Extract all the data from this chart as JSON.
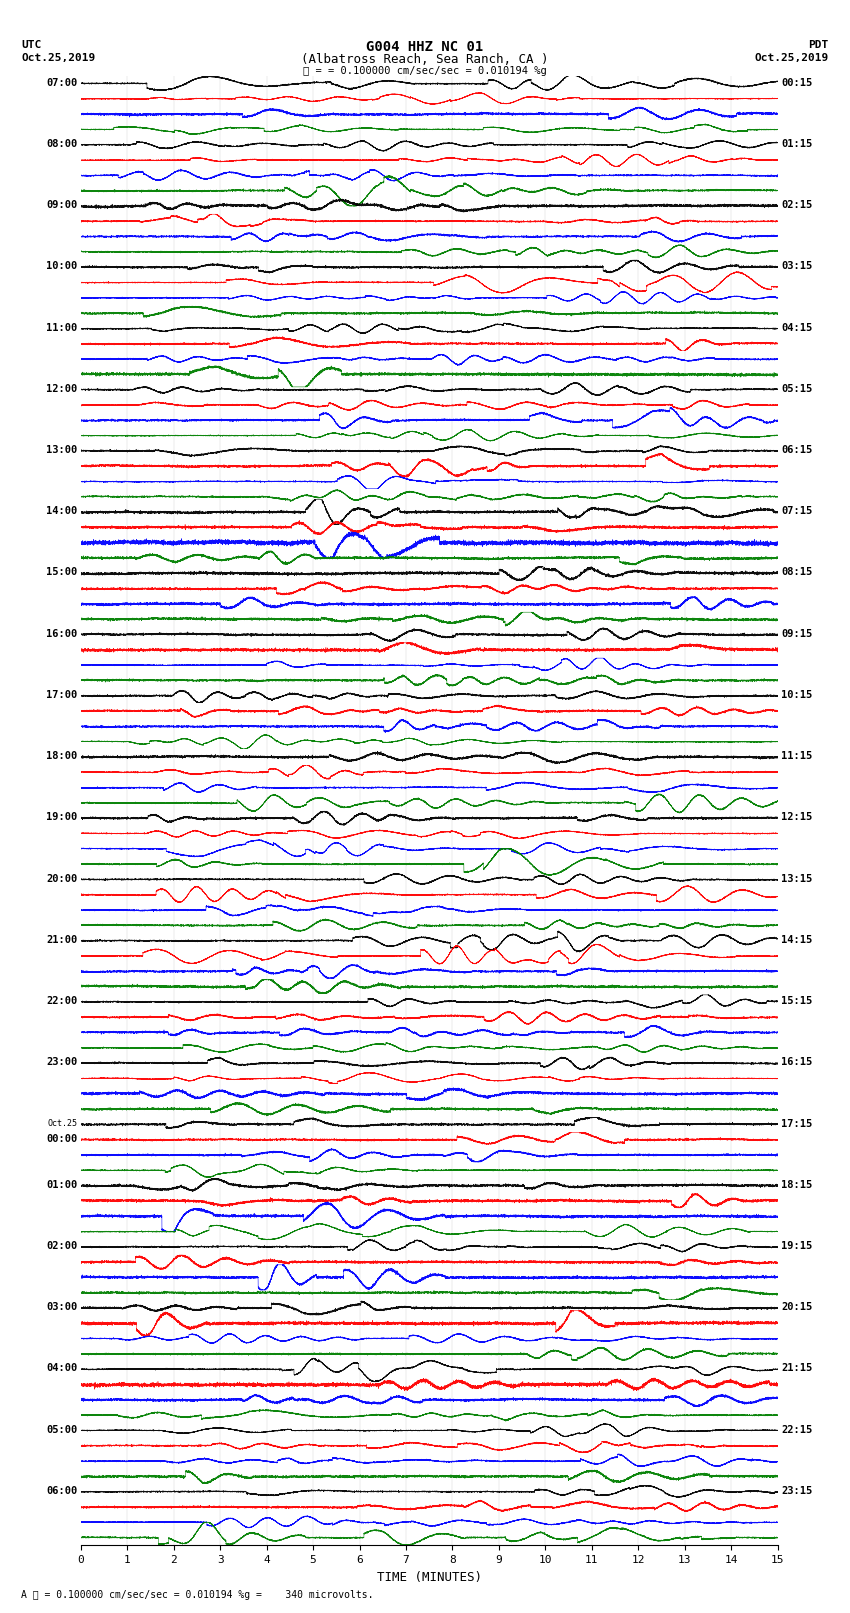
{
  "title_line1": "G004 HHZ NC 01",
  "title_line2": "(Albatross Reach, Sea Ranch, CA )",
  "scale_text": "= 0.100000 cm/sec/sec = 0.010194 %g",
  "footer_text": "= 0.100000 cm/sec/sec = 0.010194 %g =    340 microvolts.",
  "utc_label": "UTC",
  "utc_date": "Oct.25,2019",
  "pdt_label": "PDT",
  "pdt_date": "Oct.25,2019",
  "xlabel": "TIME (MINUTES)",
  "left_times": [
    "07:00",
    "08:00",
    "09:00",
    "10:00",
    "11:00",
    "12:00",
    "13:00",
    "14:00",
    "15:00",
    "16:00",
    "17:00",
    "18:00",
    "19:00",
    "20:00",
    "21:00",
    "22:00",
    "23:00",
    "Oct.25\n00:00",
    "01:00",
    "02:00",
    "03:00",
    "04:00",
    "05:00",
    "06:00"
  ],
  "right_times": [
    "00:15",
    "01:15",
    "02:15",
    "03:15",
    "04:15",
    "05:15",
    "06:15",
    "07:15",
    "08:15",
    "09:15",
    "10:15",
    "11:15",
    "12:15",
    "13:15",
    "14:15",
    "15:15",
    "16:15",
    "17:15",
    "18:15",
    "19:15",
    "20:15",
    "21:15",
    "22:15",
    "23:15"
  ],
  "n_rows": 24,
  "n_traces_per_row": 4,
  "colors": [
    "black",
    "red",
    "blue",
    "green"
  ],
  "trace_minutes": 15,
  "background_color": "white",
  "fig_width": 8.5,
  "fig_height": 16.13,
  "dpi": 100
}
